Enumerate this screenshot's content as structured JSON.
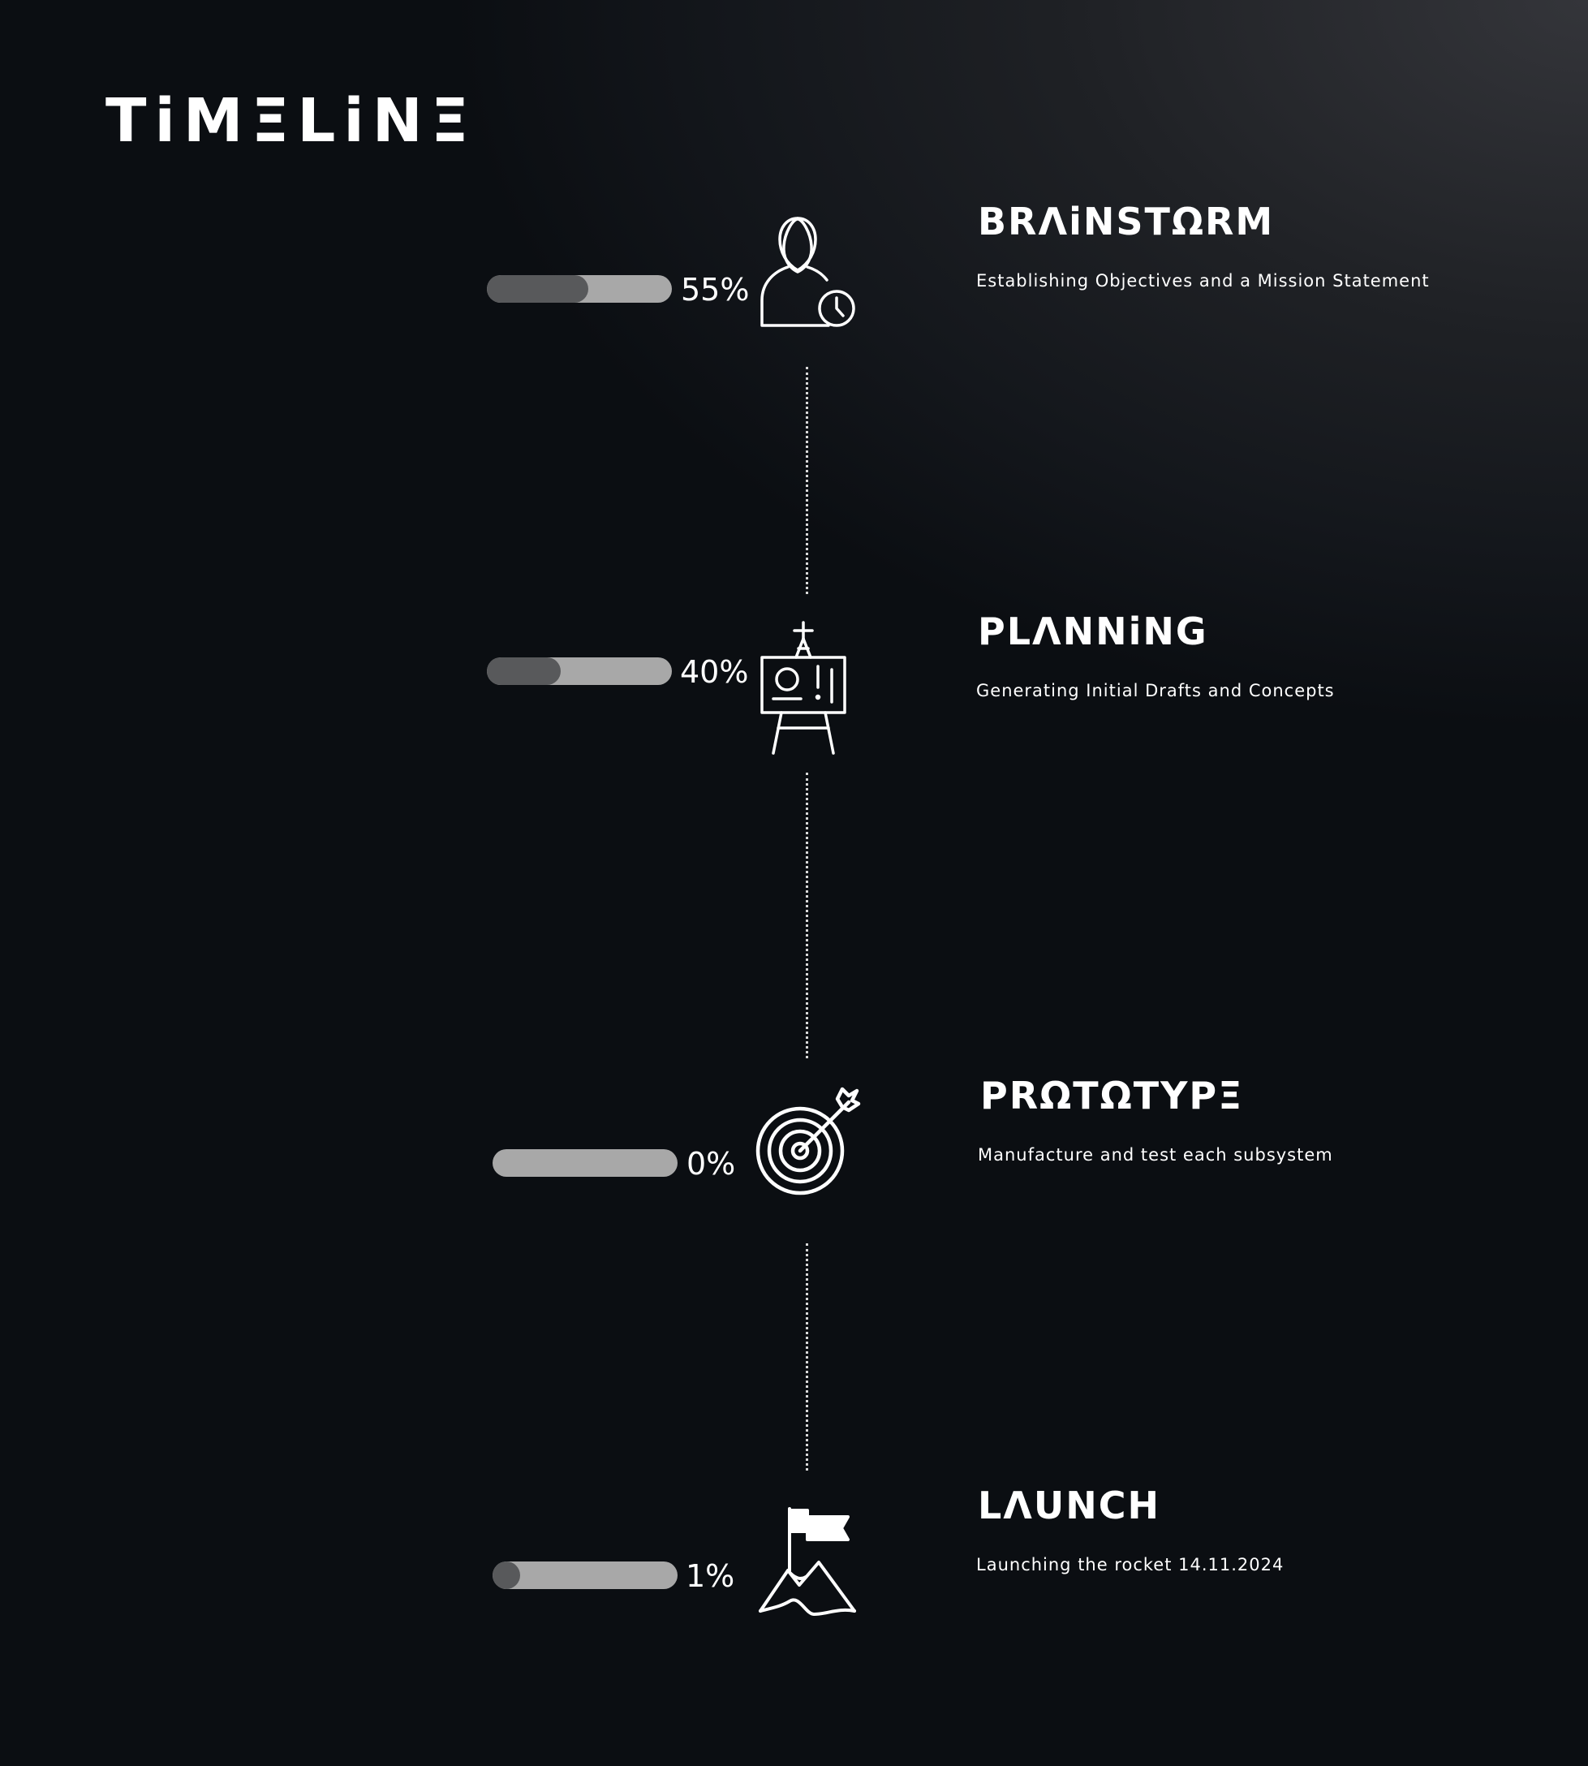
{
  "page": {
    "title": "TiMΞLiNΞ"
  },
  "milestones": [
    {
      "title": "BRΛiNSTΩRM",
      "description": "Establishing Objectives and a Mission Statement",
      "percent_label": "55%",
      "progress": 0.55,
      "icon": "person-clock-icon"
    },
    {
      "title": "PLΛNNiNG",
      "description": "Generating Initial Drafts and Concepts",
      "percent_label": "40%",
      "progress": 0.4,
      "icon": "easel-icon"
    },
    {
      "title": "PRΩTΩTYPΞ",
      "description": "Manufacture and test each subsystem",
      "percent_label": "0%",
      "progress": 0.0,
      "icon": "target-icon"
    },
    {
      "title": "LΛUNCH",
      "description": "Launching the rocket 14.11.2024",
      "percent_label": "1%",
      "progress": 0.01,
      "icon": "flag-mountain-icon"
    }
  ],
  "colors": {
    "background": "#1b1d21",
    "text": "#ffffff",
    "track": "#a8a8a8",
    "fill": "#58595b",
    "connector": "#d8d8d8"
  }
}
